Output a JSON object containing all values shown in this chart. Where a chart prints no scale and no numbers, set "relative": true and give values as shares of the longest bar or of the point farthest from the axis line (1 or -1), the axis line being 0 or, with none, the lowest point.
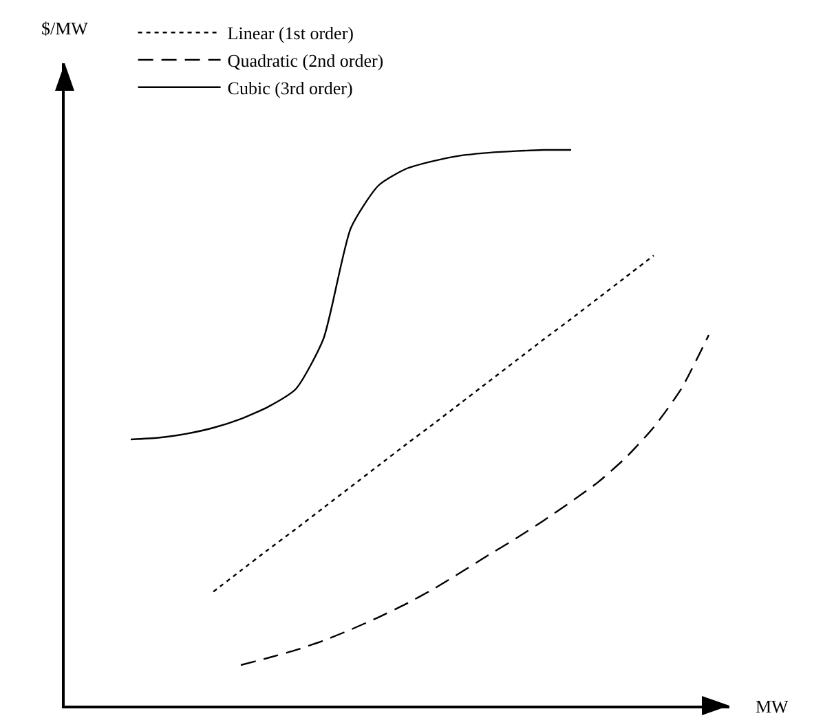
{
  "chart_data": {
    "type": "line",
    "relative": true,
    "xlabel": "MW",
    "annotations": [
      "$/MW"
    ],
    "legend": "top",
    "grid": false,
    "categories": [
      null,
      null,
      null,
      null,
      null,
      null,
      null,
      null,
      null,
      null,
      null,
      null,
      null,
      null,
      null,
      null,
      null,
      null,
      null,
      null,
      null,
      null
    ],
    "series": [
      {
        "name": "Linear (1st order)",
        "color": "#000000",
        "line_style": "dotted",
        "values": [
          null,
          null,
          null,
          0.205,
          0.243,
          0.281,
          0.318,
          0.356,
          0.394,
          0.432,
          0.47,
          0.507,
          0.545,
          0.583,
          0.621,
          0.659,
          0.696,
          0.734,
          0.772,
          0.81,
          null,
          null
        ]
      },
      {
        "name": "Quadratic (2nd order)",
        "color": "#000000",
        "line_style": "dashed",
        "values": [
          null,
          null,
          null,
          null,
          0.073,
          0.086,
          0.1,
          0.117,
          0.137,
          0.159,
          0.183,
          0.21,
          0.24,
          0.271,
          0.301,
          0.333,
          0.367,
          0.403,
          0.447,
          0.501,
          0.57,
          0.667
        ]
      },
      {
        "name": "Cubic (3rd order)",
        "color": "#000000",
        "line_style": "solid",
        "values": [
          0.479,
          0.482,
          0.489,
          0.5,
          0.516,
          0.538,
          0.57,
          0.66,
          0.86,
          0.936,
          0.966,
          0.98,
          0.99,
          0.995,
          0.998,
          1.0,
          1.0,
          null,
          null,
          null,
          null,
          null
        ]
      }
    ]
  }
}
